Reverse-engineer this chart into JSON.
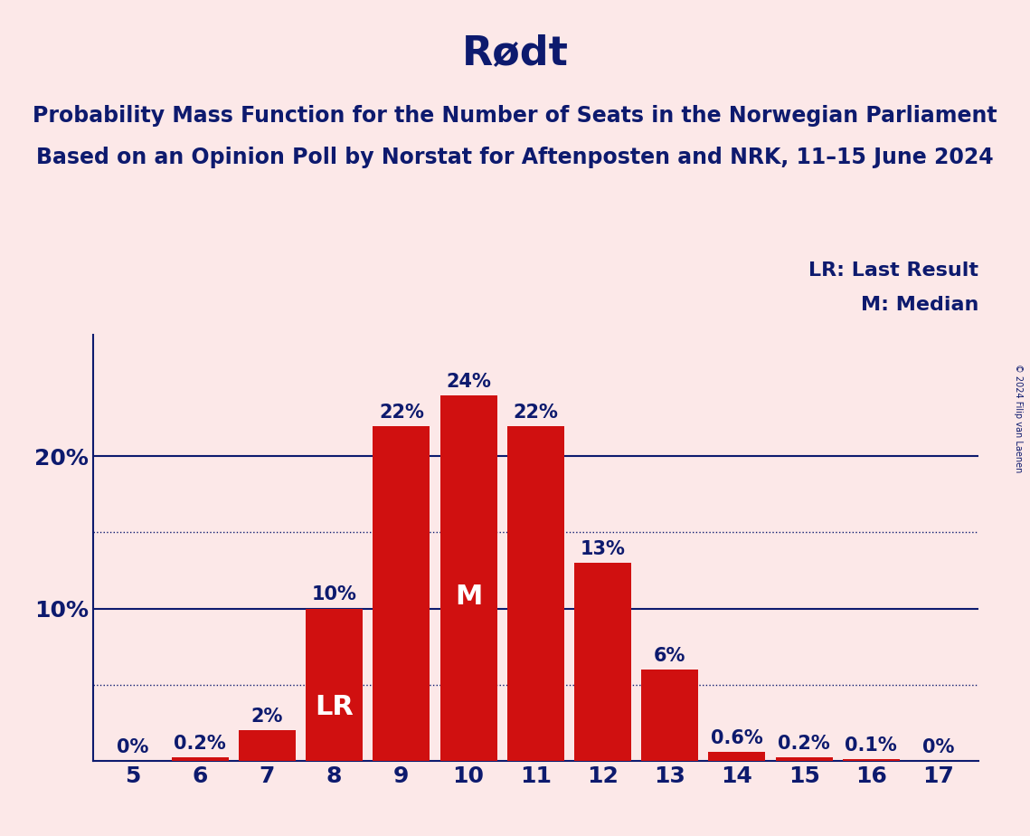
{
  "title": "Rødt",
  "subtitle_line1": "Probability Mass Function for the Number of Seats in the Norwegian Parliament",
  "subtitle_line2": "Based on an Opinion Poll by Norstat for Aftenposten and NRK, 11–15 June 2024",
  "copyright": "© 2024 Filip van Laenen",
  "legend_lr": "LR: Last Result",
  "legend_m": "M: Median",
  "seats": [
    5,
    6,
    7,
    8,
    9,
    10,
    11,
    12,
    13,
    14,
    15,
    16,
    17
  ],
  "probabilities": [
    0.0,
    0.2,
    2.0,
    10.0,
    22.0,
    24.0,
    22.0,
    13.0,
    6.0,
    0.6,
    0.2,
    0.1,
    0.0
  ],
  "labels": [
    "0%",
    "0.2%",
    "2%",
    "10%",
    "22%",
    "24%",
    "22%",
    "13%",
    "6%",
    "0.6%",
    "0.2%",
    "0.1%",
    "0%"
  ],
  "bar_color": "#d01010",
  "background_color": "#fce8e8",
  "title_color": "#0d1a6e",
  "axis_color": "#0d1a6e",
  "white_text": "#ffffff",
  "median_seat": 10,
  "last_result_seat": 8,
  "dotted_line_values": [
    5.0,
    15.0
  ],
  "solid_line_values": [
    10.0,
    20.0
  ],
  "ylim": [
    0,
    28
  ],
  "title_fontsize": 32,
  "subtitle_fontsize": 17,
  "label_fontsize": 15,
  "axis_tick_fontsize": 18,
  "legend_fontsize": 16,
  "inside_label_fontsize": 22
}
